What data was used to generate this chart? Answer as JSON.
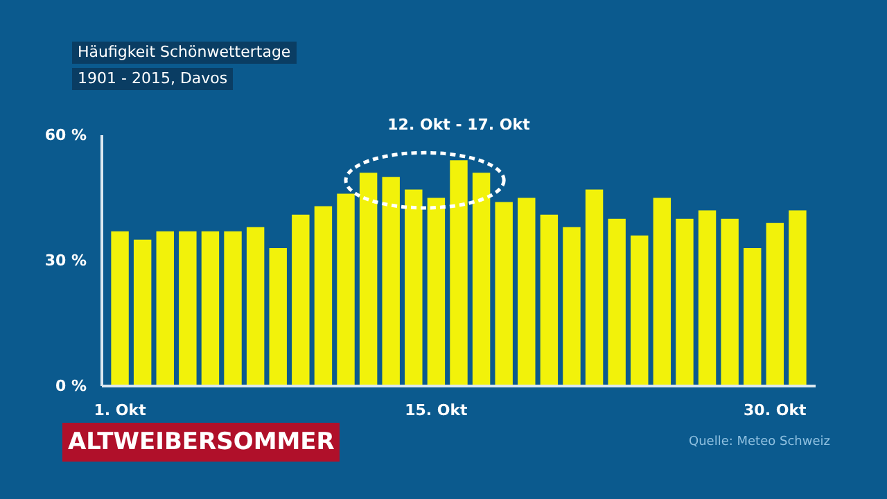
{
  "chart_data": {
    "type": "bar",
    "title": "Häufigkeit Schönwettertage",
    "subtitle": "1901 - 2015, Davos",
    "x": [
      1,
      2,
      3,
      4,
      5,
      6,
      7,
      8,
      9,
      10,
      11,
      12,
      13,
      14,
      15,
      16,
      17,
      18,
      19,
      20,
      21,
      22,
      23,
      24,
      25,
      26,
      27,
      28,
      29,
      30,
      31
    ],
    "values": [
      37,
      35,
      37,
      37,
      37,
      37,
      38,
      33,
      41,
      43,
      46,
      51,
      50,
      47,
      45,
      54,
      51,
      44,
      45,
      41,
      38,
      47,
      40,
      36,
      45,
      40,
      42,
      40,
      33,
      39,
      42
    ],
    "color": "#f2f20a",
    "xlim": [
      0.2,
      31.8
    ],
    "xticks": [
      {
        "value": 1,
        "label": "1. Okt"
      },
      {
        "value": 15,
        "label": "15. Okt"
      },
      {
        "value": 30,
        "label": "30. Okt"
      }
    ],
    "ylim": [
      0,
      60
    ],
    "yticks": [
      {
        "value": 0,
        "label": "0 %"
      },
      {
        "value": 30,
        "label": "30 %"
      },
      {
        "value": 60,
        "label": "60 %"
      }
    ],
    "annotations": [
      "12. Okt - 17. Okt",
      "ALTWEIBERSOMMER",
      "Quelle: Meteo Schweiz"
    ],
    "grid": false
  }
}
